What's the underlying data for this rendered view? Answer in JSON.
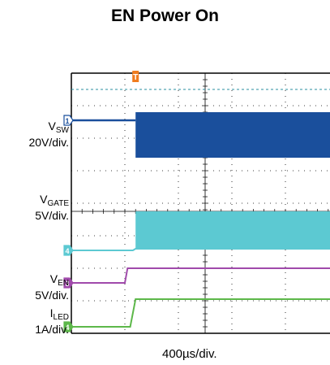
{
  "title": "EN Power On",
  "channels": [
    {
      "id": "1",
      "name_main": "V",
      "name_sub": "SW",
      "scale": "20V/div.",
      "color": "#1a4f9c"
    },
    {
      "id": "4",
      "name_main": "V",
      "name_sub": "GATE",
      "scale": "5V/div.",
      "color": "#5cc9d2"
    },
    {
      "id": "3",
      "name_main": "V",
      "name_sub": "EN",
      "scale": "5V/div.",
      "color": "#a04aab"
    },
    {
      "id": "4",
      "name_main": "I",
      "name_sub": "LED",
      "scale": "1A/div.",
      "color": "#5db84a"
    }
  ],
  "x_scale": "400µs/div.",
  "trigger_marker": "T",
  "trigger_color": "#f07c1e",
  "chart_data": {
    "type": "line",
    "title": "EN Power On",
    "xlabel": "400µs/div.",
    "x_unit": "div",
    "xlim": [
      0,
      10
    ],
    "ylim": [
      0,
      8
    ],
    "grid": true,
    "series": [
      {
        "name": "VSW",
        "x": [
          0,
          1.2,
          1.2,
          10
        ],
        "y_low": [
          6.55,
          6.55,
          5.4,
          5.4
        ],
        "y_high": [
          6.55,
          6.55,
          6.8,
          6.8
        ],
        "band_from_x": 1.2
      },
      {
        "name": "VGATE",
        "x": [
          0,
          1.15,
          1.2,
          10
        ],
        "y_low": [
          2.55,
          2.55,
          2.6,
          2.6
        ],
        "y_high": [
          2.55,
          2.55,
          3.75,
          3.75
        ],
        "band_from_x": 1.2
      },
      {
        "name": "VEN",
        "x": [
          0,
          1.0,
          1.05,
          10
        ],
        "y": [
          1.55,
          1.55,
          2.0,
          2.0
        ]
      },
      {
        "name": "ILED",
        "x": [
          0,
          1.1,
          1.2,
          10
        ],
        "y": [
          0.2,
          0.2,
          1.05,
          1.05
        ]
      }
    ]
  }
}
